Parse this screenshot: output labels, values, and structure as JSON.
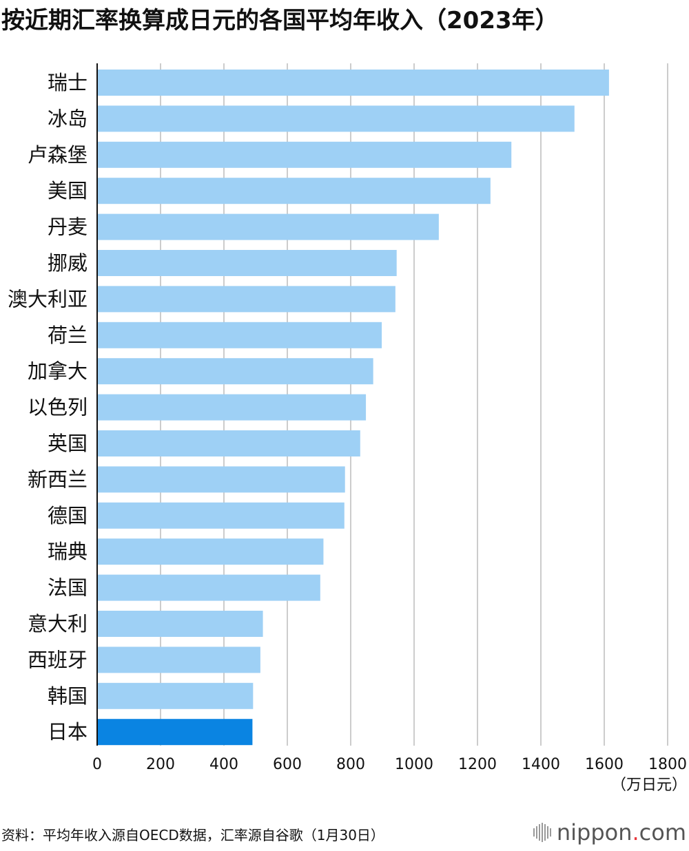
{
  "title": "按近期汇率换算成日元的各国平均年收入（2023年）",
  "chart_data": {
    "type": "bar",
    "orientation": "horizontal",
    "categories": [
      "瑞士",
      "冰岛",
      "卢森堡",
      "美国",
      "丹麦",
      "挪威",
      "澳大利亚",
      "荷兰",
      "加拿大",
      "以色列",
      "英国",
      "新西兰",
      "德国",
      "瑞典",
      "法国",
      "意大利",
      "西班牙",
      "韩国",
      "日本"
    ],
    "values": [
      1615,
      1506,
      1307,
      1241,
      1078,
      945,
      941,
      898,
      871,
      848,
      830,
      782,
      780,
      714,
      704,
      523,
      515,
      492,
      490
    ],
    "highlight": "日本",
    "xlim": [
      0,
      1800
    ],
    "xticks": [
      "0",
      "200",
      "400",
      "600",
      "800",
      "1000",
      "1200",
      "1400",
      "1600",
      "1800"
    ],
    "unit_label": "（万日元）",
    "grid": true,
    "colors": {
      "bar": "#9ed0f5",
      "highlight": "#0a84e2",
      "grid": "#cccccc",
      "axis": "#111111"
    }
  },
  "footer": {
    "source": "资料：平均年收入源自OECD数据，汇率源自谷歌（1月30日）",
    "logo_main": "nippon",
    "logo_dot": ".",
    "logo_suffix": "com"
  }
}
